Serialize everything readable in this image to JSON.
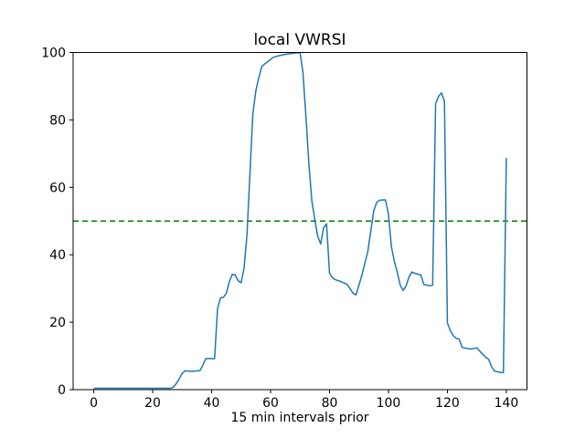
{
  "chart_data": {
    "type": "line",
    "title": "local VWRSI",
    "xlabel": "15 min intervals prior",
    "ylabel": "",
    "xlim": [
      -7,
      147
    ],
    "ylim": [
      0,
      100
    ],
    "xticks": [
      0,
      20,
      40,
      60,
      80,
      100,
      120,
      140
    ],
    "yticks": [
      0,
      20,
      40,
      60,
      80,
      100
    ],
    "grid": false,
    "legend": "none",
    "colors": {
      "line": "#1f77b4",
      "threshold": "#008000",
      "axes": "#000000",
      "background": "#ffffff"
    },
    "series": [
      {
        "name": "local-vwrsi",
        "color": "#1f77b4",
        "style": "solid",
        "points": [
          [
            0,
            0.4
          ],
          [
            26,
            0.4
          ],
          [
            27,
            0.7
          ],
          [
            28,
            1.8
          ],
          [
            29,
            3.2
          ],
          [
            30,
            4.8
          ],
          [
            31,
            5.6
          ],
          [
            33,
            5.4
          ],
          [
            36,
            5.6
          ],
          [
            37,
            7.2
          ],
          [
            38,
            9.2
          ],
          [
            41,
            9.2
          ],
          [
            42,
            24
          ],
          [
            43,
            27.2
          ],
          [
            44,
            27.4
          ],
          [
            45,
            28.6
          ],
          [
            46,
            32
          ],
          [
            47,
            34.2
          ],
          [
            48,
            34
          ],
          [
            49,
            32.3
          ],
          [
            50,
            31.7
          ],
          [
            51,
            36
          ],
          [
            52,
            46
          ],
          [
            53,
            64
          ],
          [
            54,
            82
          ],
          [
            55,
            88.6
          ],
          [
            56,
            92.5
          ],
          [
            57,
            95.8
          ],
          [
            58,
            96.6
          ],
          [
            61,
            98.6
          ],
          [
            64,
            99.3
          ],
          [
            67,
            99.7
          ],
          [
            69,
            99.9
          ],
          [
            70,
            99.9
          ],
          [
            71,
            94
          ],
          [
            72,
            81
          ],
          [
            73,
            67
          ],
          [
            74,
            56
          ],
          [
            75,
            50.5
          ],
          [
            76,
            45.5
          ],
          [
            77,
            43.2
          ],
          [
            78,
            48
          ],
          [
            79,
            49.2
          ],
          [
            80,
            34.5
          ],
          [
            81,
            33.2
          ],
          [
            82,
            32.6
          ],
          [
            84,
            32
          ],
          [
            86,
            31.2
          ],
          [
            88,
            28.6
          ],
          [
            89,
            28.1
          ],
          [
            90,
            31
          ],
          [
            91,
            34
          ],
          [
            92,
            37.5
          ],
          [
            93,
            41
          ],
          [
            94,
            47
          ],
          [
            95,
            53
          ],
          [
            96,
            55.5
          ],
          [
            97,
            56.2
          ],
          [
            99,
            56.3
          ],
          [
            100,
            52
          ],
          [
            101,
            42.5
          ],
          [
            102,
            38
          ],
          [
            103,
            34.8
          ],
          [
            104,
            31
          ],
          [
            105,
            29.4
          ],
          [
            106,
            30.8
          ],
          [
            107,
            33.5
          ],
          [
            108,
            34.9
          ],
          [
            109,
            34.5
          ],
          [
            111,
            34
          ],
          [
            112,
            31.2
          ],
          [
            114,
            30.8
          ],
          [
            115,
            31
          ],
          [
            116,
            84.8
          ],
          [
            117,
            87
          ],
          [
            118,
            88
          ],
          [
            119,
            85.5
          ],
          [
            120,
            19.8
          ],
          [
            121,
            17.5
          ],
          [
            122,
            16
          ],
          [
            123,
            15.2
          ],
          [
            124,
            15
          ],
          [
            125,
            12.5
          ],
          [
            128,
            12
          ],
          [
            129,
            12.2
          ],
          [
            130,
            12.4
          ],
          [
            131,
            11.4
          ],
          [
            132,
            10.5
          ],
          [
            133,
            9.6
          ],
          [
            134,
            9
          ],
          [
            135,
            6.8
          ],
          [
            136,
            5.5
          ],
          [
            138,
            5.1
          ],
          [
            139,
            5
          ],
          [
            140,
            68.7
          ]
        ]
      },
      {
        "name": "threshold-50",
        "color": "#008000",
        "style": "dashed",
        "points": [
          [
            -7,
            50
          ],
          [
            147,
            50
          ]
        ]
      }
    ]
  }
}
